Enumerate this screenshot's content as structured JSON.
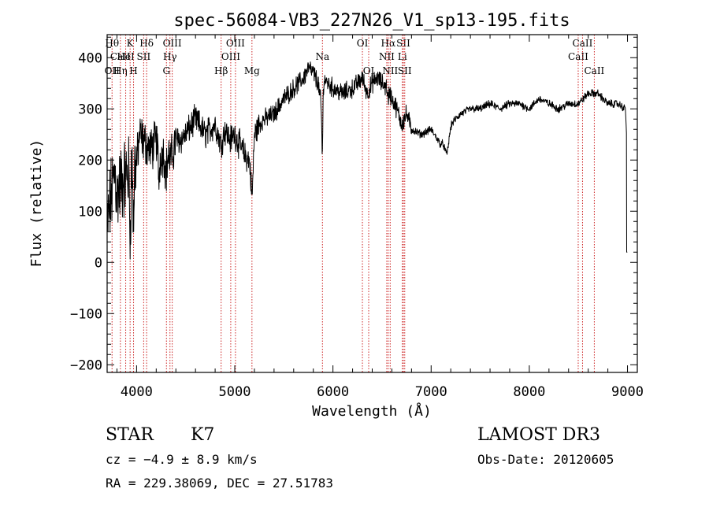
{
  "chart_data": {
    "type": "line",
    "title": "spec-56084-VB3_227N26_V1_sp13-195.fits",
    "xlabel": "Wavelength (Å)",
    "ylabel": "Flux (relative)",
    "xlim": [
      3700,
      9100
    ],
    "ylim": [
      -215,
      445
    ],
    "xticks": [
      4000,
      5000,
      6000,
      7000,
      8000,
      9000
    ],
    "yticks": [
      -200,
      -100,
      0,
      100,
      200,
      300,
      400
    ],
    "spectrum_anchors": {
      "x": [
        3700,
        3720,
        3750,
        3780,
        3800,
        3830,
        3860,
        3900,
        3940,
        3980,
        4000,
        4030,
        4060,
        4100,
        4150,
        4200,
        4250,
        4300,
        4350,
        4400,
        4450,
        4500,
        4600,
        4700,
        4800,
        4860,
        4900,
        4950,
        5000,
        5050,
        5100,
        5150,
        5180,
        5200,
        5250,
        5300,
        5400,
        5500,
        5600,
        5700,
        5750,
        5800,
        5850,
        5890,
        5900,
        5950,
        6000,
        6100,
        6200,
        6300,
        6350,
        6400,
        6450,
        6500,
        6560,
        6600,
        6650,
        6700,
        6750,
        6800,
        6900,
        7000,
        7100,
        7150,
        7200,
        7300,
        7400,
        7500,
        7600,
        7700,
        7800,
        7900,
        8000,
        8100,
        8200,
        8300,
        8400,
        8500,
        8600,
        8700,
        8800,
        8900,
        8980,
        9000
      ],
      "flux": [
        60,
        100,
        140,
        180,
        130,
        150,
        160,
        170,
        180,
        200,
        190,
        250,
        240,
        230,
        220,
        240,
        210,
        220,
        200,
        240,
        240,
        250,
        280,
        250,
        270,
        230,
        260,
        240,
        250,
        230,
        210,
        200,
        190,
        250,
        270,
        280,
        290,
        320,
        340,
        360,
        380,
        370,
        350,
        290,
        360,
        350,
        340,
        330,
        340,
        360,
        330,
        350,
        360,
        350,
        340,
        320,
        300,
        270,
        290,
        260,
        250,
        260,
        230,
        250,
        270,
        290,
        300,
        300,
        310,
        300,
        310,
        310,
        300,
        320,
        310,
        300,
        310,
        310,
        330,
        330,
        310,
        310,
        300,
        200
      ]
    },
    "line_markers": [
      {
        "wave": 3750,
        "labels": [
          "Hθ",
          "OII"
        ],
        "rows": [
          1,
          3
        ]
      },
      {
        "wave": 3835,
        "labels": [
          "CaII",
          "Hη"
        ],
        "rows": [
          2,
          3
        ]
      },
      {
        "wave": 3889,
        "labels": [
          "HeI"
        ],
        "rows": [
          2
        ]
      },
      {
        "wave": 3934,
        "labels": [
          "K"
        ],
        "rows": [
          1
        ]
      },
      {
        "wave": 3969,
        "labels": [
          "H"
        ],
        "rows": [
          3
        ]
      },
      {
        "wave": 4072,
        "labels": [
          "SII"
        ],
        "rows": [
          2
        ]
      },
      {
        "wave": 4102,
        "labels": [
          "Hδ"
        ],
        "rows": [
          1
        ]
      },
      {
        "wave": 4304,
        "labels": [
          "G"
        ],
        "rows": [
          3
        ]
      },
      {
        "wave": 4340,
        "labels": [
          "Hγ"
        ],
        "rows": [
          2
        ]
      },
      {
        "wave": 4363,
        "labels": [
          "OIII"
        ],
        "rows": [
          1
        ]
      },
      {
        "wave": 4861,
        "labels": [
          "Hβ"
        ],
        "rows": [
          3
        ]
      },
      {
        "wave": 4959,
        "labels": [
          "OIII"
        ],
        "rows": [
          2
        ]
      },
      {
        "wave": 5007,
        "labels": [
          "OIII"
        ],
        "rows": [
          1
        ]
      },
      {
        "wave": 5175,
        "labels": [
          "Mg"
        ],
        "rows": [
          3
        ]
      },
      {
        "wave": 5893,
        "labels": [
          "Na"
        ],
        "rows": [
          2
        ]
      },
      {
        "wave": 6300,
        "labels": [
          "OI"
        ],
        "rows": [
          1
        ]
      },
      {
        "wave": 6364,
        "labels": [
          "OI"
        ],
        "rows": [
          3
        ]
      },
      {
        "wave": 6548,
        "labels": [
          "NII"
        ],
        "rows": [
          2
        ]
      },
      {
        "wave": 6563,
        "labels": [
          "Hα"
        ],
        "rows": [
          1
        ]
      },
      {
        "wave": 6583,
        "labels": [
          "NII"
        ],
        "rows": [
          3
        ]
      },
      {
        "wave": 6707,
        "labels": [
          "Li"
        ],
        "rows": [
          2
        ]
      },
      {
        "wave": 6717,
        "labels": [
          "SII"
        ],
        "rows": [
          1
        ]
      },
      {
        "wave": 6731,
        "labels": [
          "SII"
        ],
        "rows": [
          3
        ]
      },
      {
        "wave": 8498,
        "labels": [
          "CaII"
        ],
        "rows": [
          2
        ]
      },
      {
        "wave": 8542,
        "labels": [
          "CaII"
        ],
        "rows": [
          1
        ]
      },
      {
        "wave": 8662,
        "labels": [
          "CaII"
        ],
        "rows": [
          3
        ]
      }
    ]
  },
  "info": {
    "class": "STAR",
    "subclass": "K7",
    "survey": "LAMOST DR3",
    "cz": "cz = −4.9 ± 8.9 km/s",
    "obs_date": "Obs-Date: 20120605",
    "coords": "RA = 229.38069, DEC =  27.51783"
  },
  "colors": {
    "spectrum": "#000000",
    "marker": "#cc2222",
    "axis": "#000000"
  }
}
